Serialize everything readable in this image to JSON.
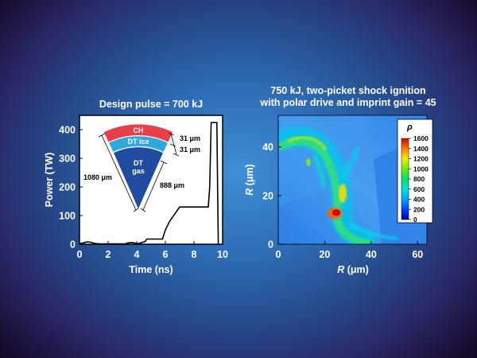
{
  "chart_data": [
    {
      "type": "line",
      "title": "Design pulse = 700 kJ",
      "xlabel": "Time (ns)",
      "ylabel": "Power (TW)",
      "xlim": [
        0,
        10
      ],
      "ylim": [
        0,
        450
      ],
      "xticks": [
        "0",
        "2",
        "4",
        "6",
        "8",
        "10"
      ],
      "yticks": [
        "0",
        "100",
        "200",
        "300",
        "400"
      ],
      "x": [
        0,
        0.3,
        0.5,
        0.8,
        1.0,
        1.2,
        1.4,
        3.2,
        3.4,
        3.7,
        3.9,
        4.1,
        4.6,
        4.7,
        5.8,
        6.0,
        6.3,
        7.0,
        7.8,
        8.6,
        9.0,
        9.1,
        9.2,
        9.6,
        9.65,
        9.7
      ],
      "values": [
        2,
        5,
        8,
        7,
        4,
        2,
        1,
        1,
        5,
        6,
        4,
        2,
        10,
        18,
        18,
        50,
        80,
        130,
        130,
        130,
        130,
        200,
        425,
        425,
        200,
        0
      ],
      "grid": false,
      "inset": {
        "layers": [
          {
            "label": "CH",
            "color": "#e8404a"
          },
          {
            "label": "DT ice",
            "color": "#2fa8e0"
          },
          {
            "label": "DT\ngas",
            "color": "#1f4c9e"
          }
        ],
        "dimensions": [
          "31 μm",
          "31 μm",
          "1080 μm",
          "888 μm"
        ]
      }
    },
    {
      "type": "heatmap",
      "title": "750 kJ, two-picket shock ignition\nwith polar drive and imprint gain = 45",
      "xlabel": "R (μm)",
      "ylabel": "R (μm)",
      "xlim": [
        0,
        64
      ],
      "ylim": [
        0,
        53
      ],
      "xticks": [
        "0",
        "20",
        "40",
        "60"
      ],
      "yticks": [
        "0",
        "20",
        "40"
      ],
      "colorbar": {
        "label": "ρ",
        "ticks": [
          "1600",
          "1400",
          "1200",
          "1000",
          "800",
          "600",
          "400",
          "200",
          "0"
        ],
        "range": [
          0,
          1600
        ]
      },
      "hotspot": {
        "x": 25,
        "y": 13,
        "value": 1600
      }
    }
  ]
}
